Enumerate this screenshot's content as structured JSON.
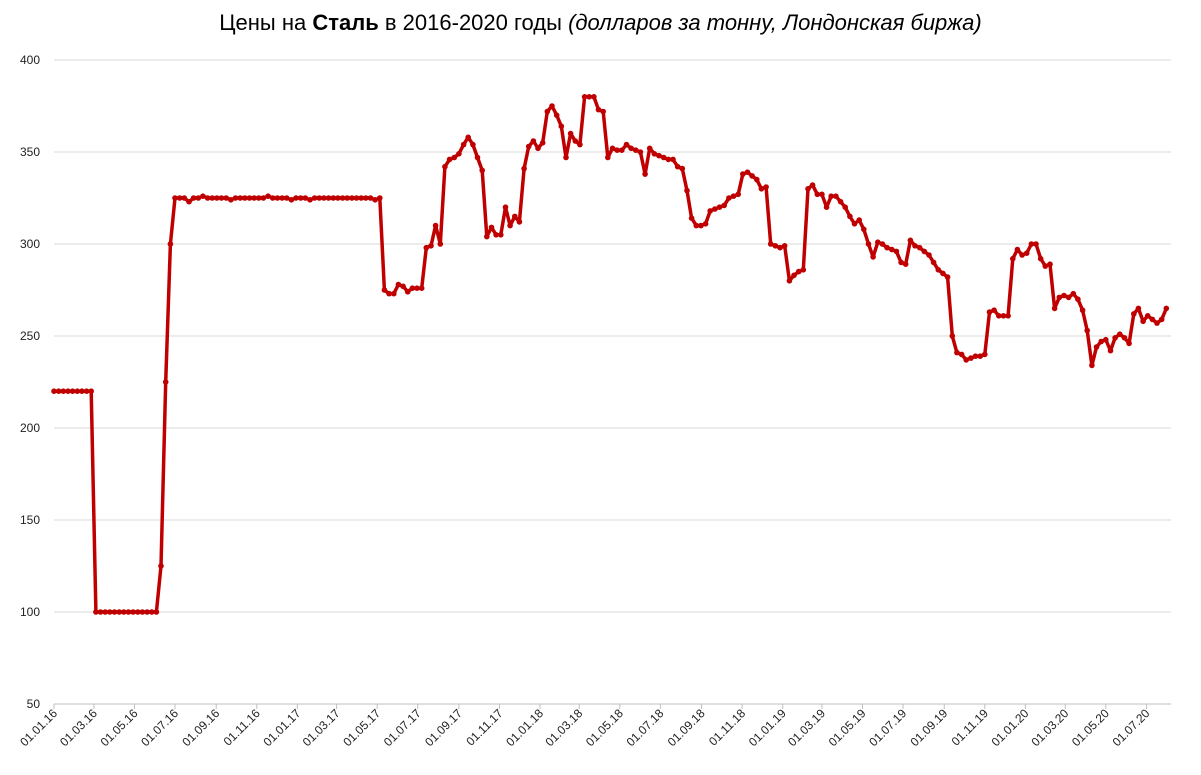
{
  "chart_data": {
    "type": "line",
    "title": {
      "prefix": "Цены на ",
      "bold": "Сталь",
      "middle": " в 2016-2020 годы ",
      "italic": "(долларов за тонну, Лондонская биржа)"
    },
    "xlabel": "",
    "ylabel": "",
    "ylim": [
      50,
      400
    ],
    "yticks": [
      50,
      100,
      150,
      200,
      250,
      300,
      350,
      400
    ],
    "x_range": [
      "2016-01-01",
      "2020-08-07"
    ],
    "grid": true,
    "color": "#c00000",
    "xtick_labels": [
      {
        "date": "2016-01-01",
        "label": "01.01.16"
      },
      {
        "date": "2016-03-01",
        "label": "01.03.16"
      },
      {
        "date": "2016-05-01",
        "label": "01.05.16"
      },
      {
        "date": "2016-07-01",
        "label": "01.07.16"
      },
      {
        "date": "2016-09-01",
        "label": "01.09.16"
      },
      {
        "date": "2016-11-01",
        "label": "01.11.16"
      },
      {
        "date": "2017-01-01",
        "label": "01.01.17"
      },
      {
        "date": "2017-03-01",
        "label": "01.03.17"
      },
      {
        "date": "2017-05-01",
        "label": "01.05.17"
      },
      {
        "date": "2017-07-01",
        "label": "01.07.17"
      },
      {
        "date": "2017-09-01",
        "label": "01.09.17"
      },
      {
        "date": "2017-11-01",
        "label": "01.11.17"
      },
      {
        "date": "2018-01-01",
        "label": "01.01.18"
      },
      {
        "date": "2018-03-01",
        "label": "01.03.18"
      },
      {
        "date": "2018-05-01",
        "label": "01.05.18"
      },
      {
        "date": "2018-07-01",
        "label": "01.07.18"
      },
      {
        "date": "2018-09-01",
        "label": "01.09.18"
      },
      {
        "date": "2018-11-01",
        "label": "01.11.18"
      },
      {
        "date": "2019-01-01",
        "label": "01.01.19"
      },
      {
        "date": "2019-03-01",
        "label": "01.03.19"
      },
      {
        "date": "2019-05-01",
        "label": "01.05.19"
      },
      {
        "date": "2019-07-01",
        "label": "01.07.19"
      },
      {
        "date": "2019-09-01",
        "label": "01.09.19"
      },
      {
        "date": "2019-11-01",
        "label": "01.11.19"
      },
      {
        "date": "2020-01-01",
        "label": "01.01.20"
      },
      {
        "date": "2020-03-01",
        "label": "01.03.20"
      },
      {
        "date": "2020-05-01",
        "label": "01.05.20"
      },
      {
        "date": "2020-07-01",
        "label": "01.07.20"
      }
    ],
    "series": [
      {
        "points": [
          [
            "2016-01-01",
            220
          ],
          [
            "2016-01-08",
            220
          ],
          [
            "2016-01-15",
            220
          ],
          [
            "2016-01-22",
            220
          ],
          [
            "2016-01-29",
            220
          ],
          [
            "2016-02-05",
            220
          ],
          [
            "2016-02-12",
            220
          ],
          [
            "2016-02-19",
            220
          ],
          [
            "2016-02-26",
            220
          ],
          [
            "2016-03-04",
            100
          ],
          [
            "2016-03-11",
            100
          ],
          [
            "2016-03-18",
            100
          ],
          [
            "2016-03-25",
            100
          ],
          [
            "2016-04-01",
            100
          ],
          [
            "2016-04-08",
            100
          ],
          [
            "2016-04-15",
            100
          ],
          [
            "2016-04-22",
            100
          ],
          [
            "2016-04-29",
            100
          ],
          [
            "2016-05-06",
            100
          ],
          [
            "2016-05-13",
            100
          ],
          [
            "2016-05-20",
            100
          ],
          [
            "2016-05-27",
            100
          ],
          [
            "2016-06-03",
            100
          ],
          [
            "2016-06-10",
            125
          ],
          [
            "2016-06-17",
            225
          ],
          [
            "2016-06-24",
            300
          ],
          [
            "2016-07-01",
            325
          ],
          [
            "2016-07-08",
            325
          ],
          [
            "2016-07-15",
            325
          ],
          [
            "2016-07-22",
            323
          ],
          [
            "2016-07-29",
            325
          ],
          [
            "2016-08-05",
            325
          ],
          [
            "2016-08-12",
            326
          ],
          [
            "2016-08-19",
            325
          ],
          [
            "2016-08-26",
            325
          ],
          [
            "2016-09-02",
            325
          ],
          [
            "2016-09-09",
            325
          ],
          [
            "2016-09-16",
            325
          ],
          [
            "2016-09-23",
            324
          ],
          [
            "2016-09-30",
            325
          ],
          [
            "2016-10-07",
            325
          ],
          [
            "2016-10-14",
            325
          ],
          [
            "2016-10-21",
            325
          ],
          [
            "2016-10-28",
            325
          ],
          [
            "2016-11-04",
            325
          ],
          [
            "2016-11-11",
            325
          ],
          [
            "2016-11-18",
            326
          ],
          [
            "2016-11-25",
            325
          ],
          [
            "2016-12-02",
            325
          ],
          [
            "2016-12-09",
            325
          ],
          [
            "2016-12-16",
            325
          ],
          [
            "2016-12-23",
            324
          ],
          [
            "2016-12-30",
            325
          ],
          [
            "2017-01-06",
            325
          ],
          [
            "2017-01-13",
            325
          ],
          [
            "2017-01-20",
            324
          ],
          [
            "2017-01-27",
            325
          ],
          [
            "2017-02-03",
            325
          ],
          [
            "2017-02-10",
            325
          ],
          [
            "2017-02-17",
            325
          ],
          [
            "2017-02-24",
            325
          ],
          [
            "2017-03-03",
            325
          ],
          [
            "2017-03-10",
            325
          ],
          [
            "2017-03-17",
            325
          ],
          [
            "2017-03-24",
            325
          ],
          [
            "2017-03-31",
            325
          ],
          [
            "2017-04-07",
            325
          ],
          [
            "2017-04-14",
            325
          ],
          [
            "2017-04-21",
            325
          ],
          [
            "2017-04-28",
            324
          ],
          [
            "2017-05-05",
            325
          ],
          [
            "2017-05-12",
            275
          ],
          [
            "2017-05-19",
            273
          ],
          [
            "2017-05-26",
            273
          ],
          [
            "2017-06-02",
            278
          ],
          [
            "2017-06-09",
            277
          ],
          [
            "2017-06-16",
            274
          ],
          [
            "2017-06-23",
            276
          ],
          [
            "2017-06-30",
            276
          ],
          [
            "2017-07-07",
            276
          ],
          [
            "2017-07-14",
            298
          ],
          [
            "2017-07-21",
            299
          ],
          [
            "2017-07-28",
            310
          ],
          [
            "2017-08-04",
            300
          ],
          [
            "2017-08-11",
            342
          ],
          [
            "2017-08-18",
            346
          ],
          [
            "2017-08-25",
            347
          ],
          [
            "2017-09-01",
            349
          ],
          [
            "2017-09-08",
            354
          ],
          [
            "2017-09-15",
            358
          ],
          [
            "2017-09-22",
            354
          ],
          [
            "2017-09-29",
            347
          ],
          [
            "2017-10-06",
            340
          ],
          [
            "2017-10-13",
            304
          ],
          [
            "2017-10-20",
            309
          ],
          [
            "2017-10-27",
            305
          ],
          [
            "2017-11-03",
            305
          ],
          [
            "2017-11-10",
            320
          ],
          [
            "2017-11-17",
            310
          ],
          [
            "2017-11-24",
            315
          ],
          [
            "2017-12-01",
            312
          ],
          [
            "2017-12-08",
            341
          ],
          [
            "2017-12-15",
            353
          ],
          [
            "2017-12-22",
            356
          ],
          [
            "2017-12-29",
            352
          ],
          [
            "2018-01-05",
            355
          ],
          [
            "2018-01-12",
            372
          ],
          [
            "2018-01-19",
            375
          ],
          [
            "2018-01-26",
            370
          ],
          [
            "2018-02-02",
            364
          ],
          [
            "2018-02-09",
            347
          ],
          [
            "2018-02-16",
            360
          ],
          [
            "2018-02-23",
            356
          ],
          [
            "2018-03-02",
            354
          ],
          [
            "2018-03-09",
            380
          ],
          [
            "2018-03-16",
            380
          ],
          [
            "2018-03-23",
            380
          ],
          [
            "2018-03-30",
            373
          ],
          [
            "2018-04-06",
            372
          ],
          [
            "2018-04-13",
            347
          ],
          [
            "2018-04-20",
            352
          ],
          [
            "2018-04-27",
            351
          ],
          [
            "2018-05-04",
            351
          ],
          [
            "2018-05-11",
            354
          ],
          [
            "2018-05-18",
            352
          ],
          [
            "2018-05-25",
            351
          ],
          [
            "2018-06-01",
            350
          ],
          [
            "2018-06-08",
            338
          ],
          [
            "2018-06-15",
            352
          ],
          [
            "2018-06-22",
            349
          ],
          [
            "2018-06-29",
            348
          ],
          [
            "2018-07-06",
            347
          ],
          [
            "2018-07-13",
            346
          ],
          [
            "2018-07-20",
            346
          ],
          [
            "2018-07-27",
            342
          ],
          [
            "2018-08-03",
            341
          ],
          [
            "2018-08-10",
            329
          ],
          [
            "2018-08-17",
            314
          ],
          [
            "2018-08-24",
            310
          ],
          [
            "2018-08-31",
            310
          ],
          [
            "2018-09-07",
            311
          ],
          [
            "2018-09-14",
            318
          ],
          [
            "2018-09-21",
            319
          ],
          [
            "2018-09-28",
            320
          ],
          [
            "2018-10-05",
            321
          ],
          [
            "2018-10-12",
            325
          ],
          [
            "2018-10-19",
            326
          ],
          [
            "2018-10-26",
            327
          ],
          [
            "2018-11-02",
            338
          ],
          [
            "2018-11-09",
            339
          ],
          [
            "2018-11-16",
            337
          ],
          [
            "2018-11-23",
            335
          ],
          [
            "2018-11-30",
            330
          ],
          [
            "2018-12-07",
            331
          ],
          [
            "2018-12-14",
            300
          ],
          [
            "2018-12-21",
            299
          ],
          [
            "2018-12-28",
            298
          ],
          [
            "2019-01-04",
            299
          ],
          [
            "2019-01-11",
            280
          ],
          [
            "2019-01-18",
            283
          ],
          [
            "2019-01-25",
            285
          ],
          [
            "2019-02-01",
            286
          ],
          [
            "2019-02-08",
            330
          ],
          [
            "2019-02-15",
            332
          ],
          [
            "2019-02-22",
            327
          ],
          [
            "2019-03-01",
            327
          ],
          [
            "2019-03-08",
            320
          ],
          [
            "2019-03-15",
            326
          ],
          [
            "2019-03-22",
            326
          ],
          [
            "2019-03-29",
            323
          ],
          [
            "2019-04-05",
            320
          ],
          [
            "2019-04-12",
            315
          ],
          [
            "2019-04-19",
            311
          ],
          [
            "2019-04-26",
            313
          ],
          [
            "2019-05-03",
            308
          ],
          [
            "2019-05-10",
            300
          ],
          [
            "2019-05-17",
            293
          ],
          [
            "2019-05-24",
            301
          ],
          [
            "2019-05-31",
            300
          ],
          [
            "2019-06-07",
            298
          ],
          [
            "2019-06-14",
            297
          ],
          [
            "2019-06-21",
            296
          ],
          [
            "2019-06-28",
            290
          ],
          [
            "2019-07-05",
            289
          ],
          [
            "2019-07-12",
            302
          ],
          [
            "2019-07-19",
            299
          ],
          [
            "2019-07-26",
            298
          ],
          [
            "2019-08-02",
            296
          ],
          [
            "2019-08-09",
            294
          ],
          [
            "2019-08-16",
            290
          ],
          [
            "2019-08-23",
            286
          ],
          [
            "2019-08-30",
            284
          ],
          [
            "2019-09-06",
            282
          ],
          [
            "2019-09-13",
            250
          ],
          [
            "2019-09-20",
            241
          ],
          [
            "2019-09-27",
            240
          ],
          [
            "2019-10-04",
            237
          ],
          [
            "2019-10-11",
            238
          ],
          [
            "2019-10-18",
            239
          ],
          [
            "2019-10-25",
            239
          ],
          [
            "2019-11-01",
            240
          ],
          [
            "2019-11-08",
            263
          ],
          [
            "2019-11-15",
            264
          ],
          [
            "2019-11-22",
            261
          ],
          [
            "2019-11-29",
            261
          ],
          [
            "2019-12-06",
            261
          ],
          [
            "2019-12-13",
            292
          ],
          [
            "2019-12-20",
            297
          ],
          [
            "2019-12-27",
            294
          ],
          [
            "2020-01-03",
            295
          ],
          [
            "2020-01-10",
            300
          ],
          [
            "2020-01-17",
            300
          ],
          [
            "2020-01-24",
            292
          ],
          [
            "2020-01-31",
            288
          ],
          [
            "2020-02-07",
            289
          ],
          [
            "2020-02-14",
            265
          ],
          [
            "2020-02-21",
            271
          ],
          [
            "2020-02-28",
            272
          ],
          [
            "2020-03-06",
            271
          ],
          [
            "2020-03-13",
            273
          ],
          [
            "2020-03-20",
            270
          ],
          [
            "2020-03-27",
            264
          ],
          [
            "2020-04-03",
            253
          ],
          [
            "2020-04-10",
            234
          ],
          [
            "2020-04-17",
            244
          ],
          [
            "2020-04-24",
            247
          ],
          [
            "2020-05-01",
            248
          ],
          [
            "2020-05-08",
            242
          ],
          [
            "2020-05-15",
            249
          ],
          [
            "2020-05-22",
            251
          ],
          [
            "2020-05-29",
            249
          ],
          [
            "2020-06-05",
            246
          ],
          [
            "2020-06-12",
            262
          ],
          [
            "2020-06-19",
            265
          ],
          [
            "2020-06-26",
            258
          ],
          [
            "2020-07-03",
            261
          ],
          [
            "2020-07-10",
            259
          ],
          [
            "2020-07-17",
            257
          ],
          [
            "2020-07-24",
            259
          ],
          [
            "2020-07-31",
            265
          ]
        ]
      }
    ]
  }
}
